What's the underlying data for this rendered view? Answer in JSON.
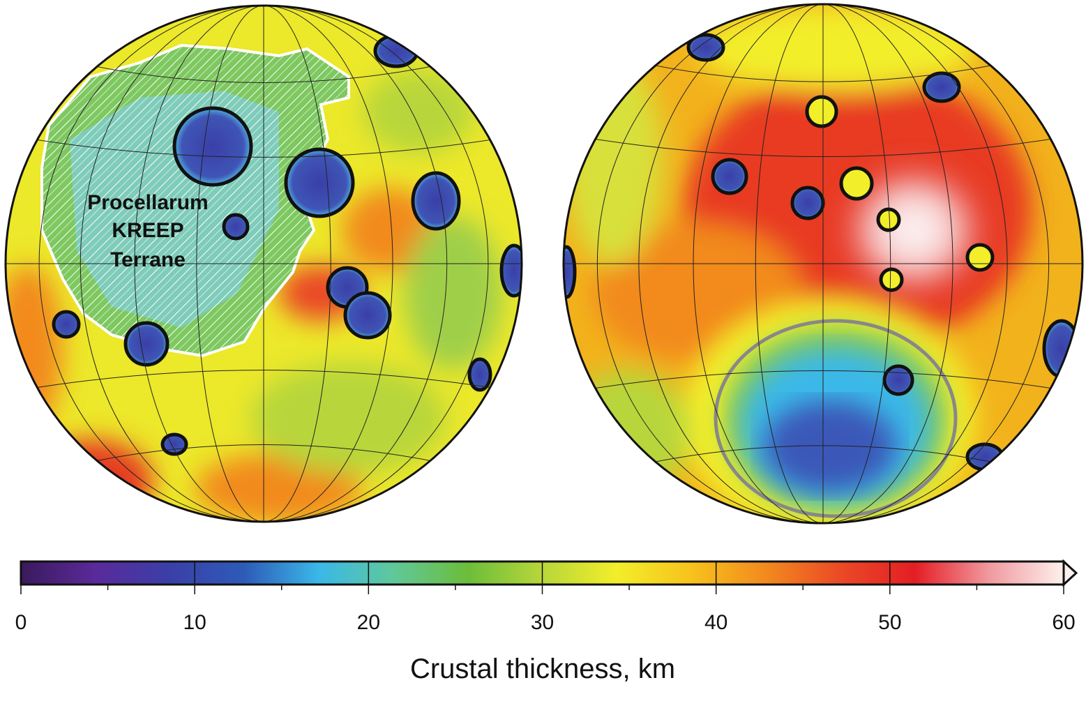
{
  "map": {
    "label_lines": [
      "Procellarum",
      "KREEP",
      "Terrane"
    ]
  },
  "colorbar": {
    "label": "Crustal thickness, km",
    "range": [
      0,
      60
    ],
    "ticks": [
      0,
      10,
      20,
      30,
      40,
      50,
      60
    ],
    "minor_ticks": [
      5,
      15,
      25,
      35,
      45,
      55
    ],
    "colors": [
      "#3a1a5c",
      "#5a2a9a",
      "#3b3fa8",
      "#2e5bb8",
      "#3ab8e8",
      "#5fc89a",
      "#6cbd3a",
      "#b8d63a",
      "#f2ee2a",
      "#f7c21c",
      "#f28a1e",
      "#ea4a26",
      "#e41e24",
      "#f09aa0",
      "#fdf0ec"
    ]
  }
}
